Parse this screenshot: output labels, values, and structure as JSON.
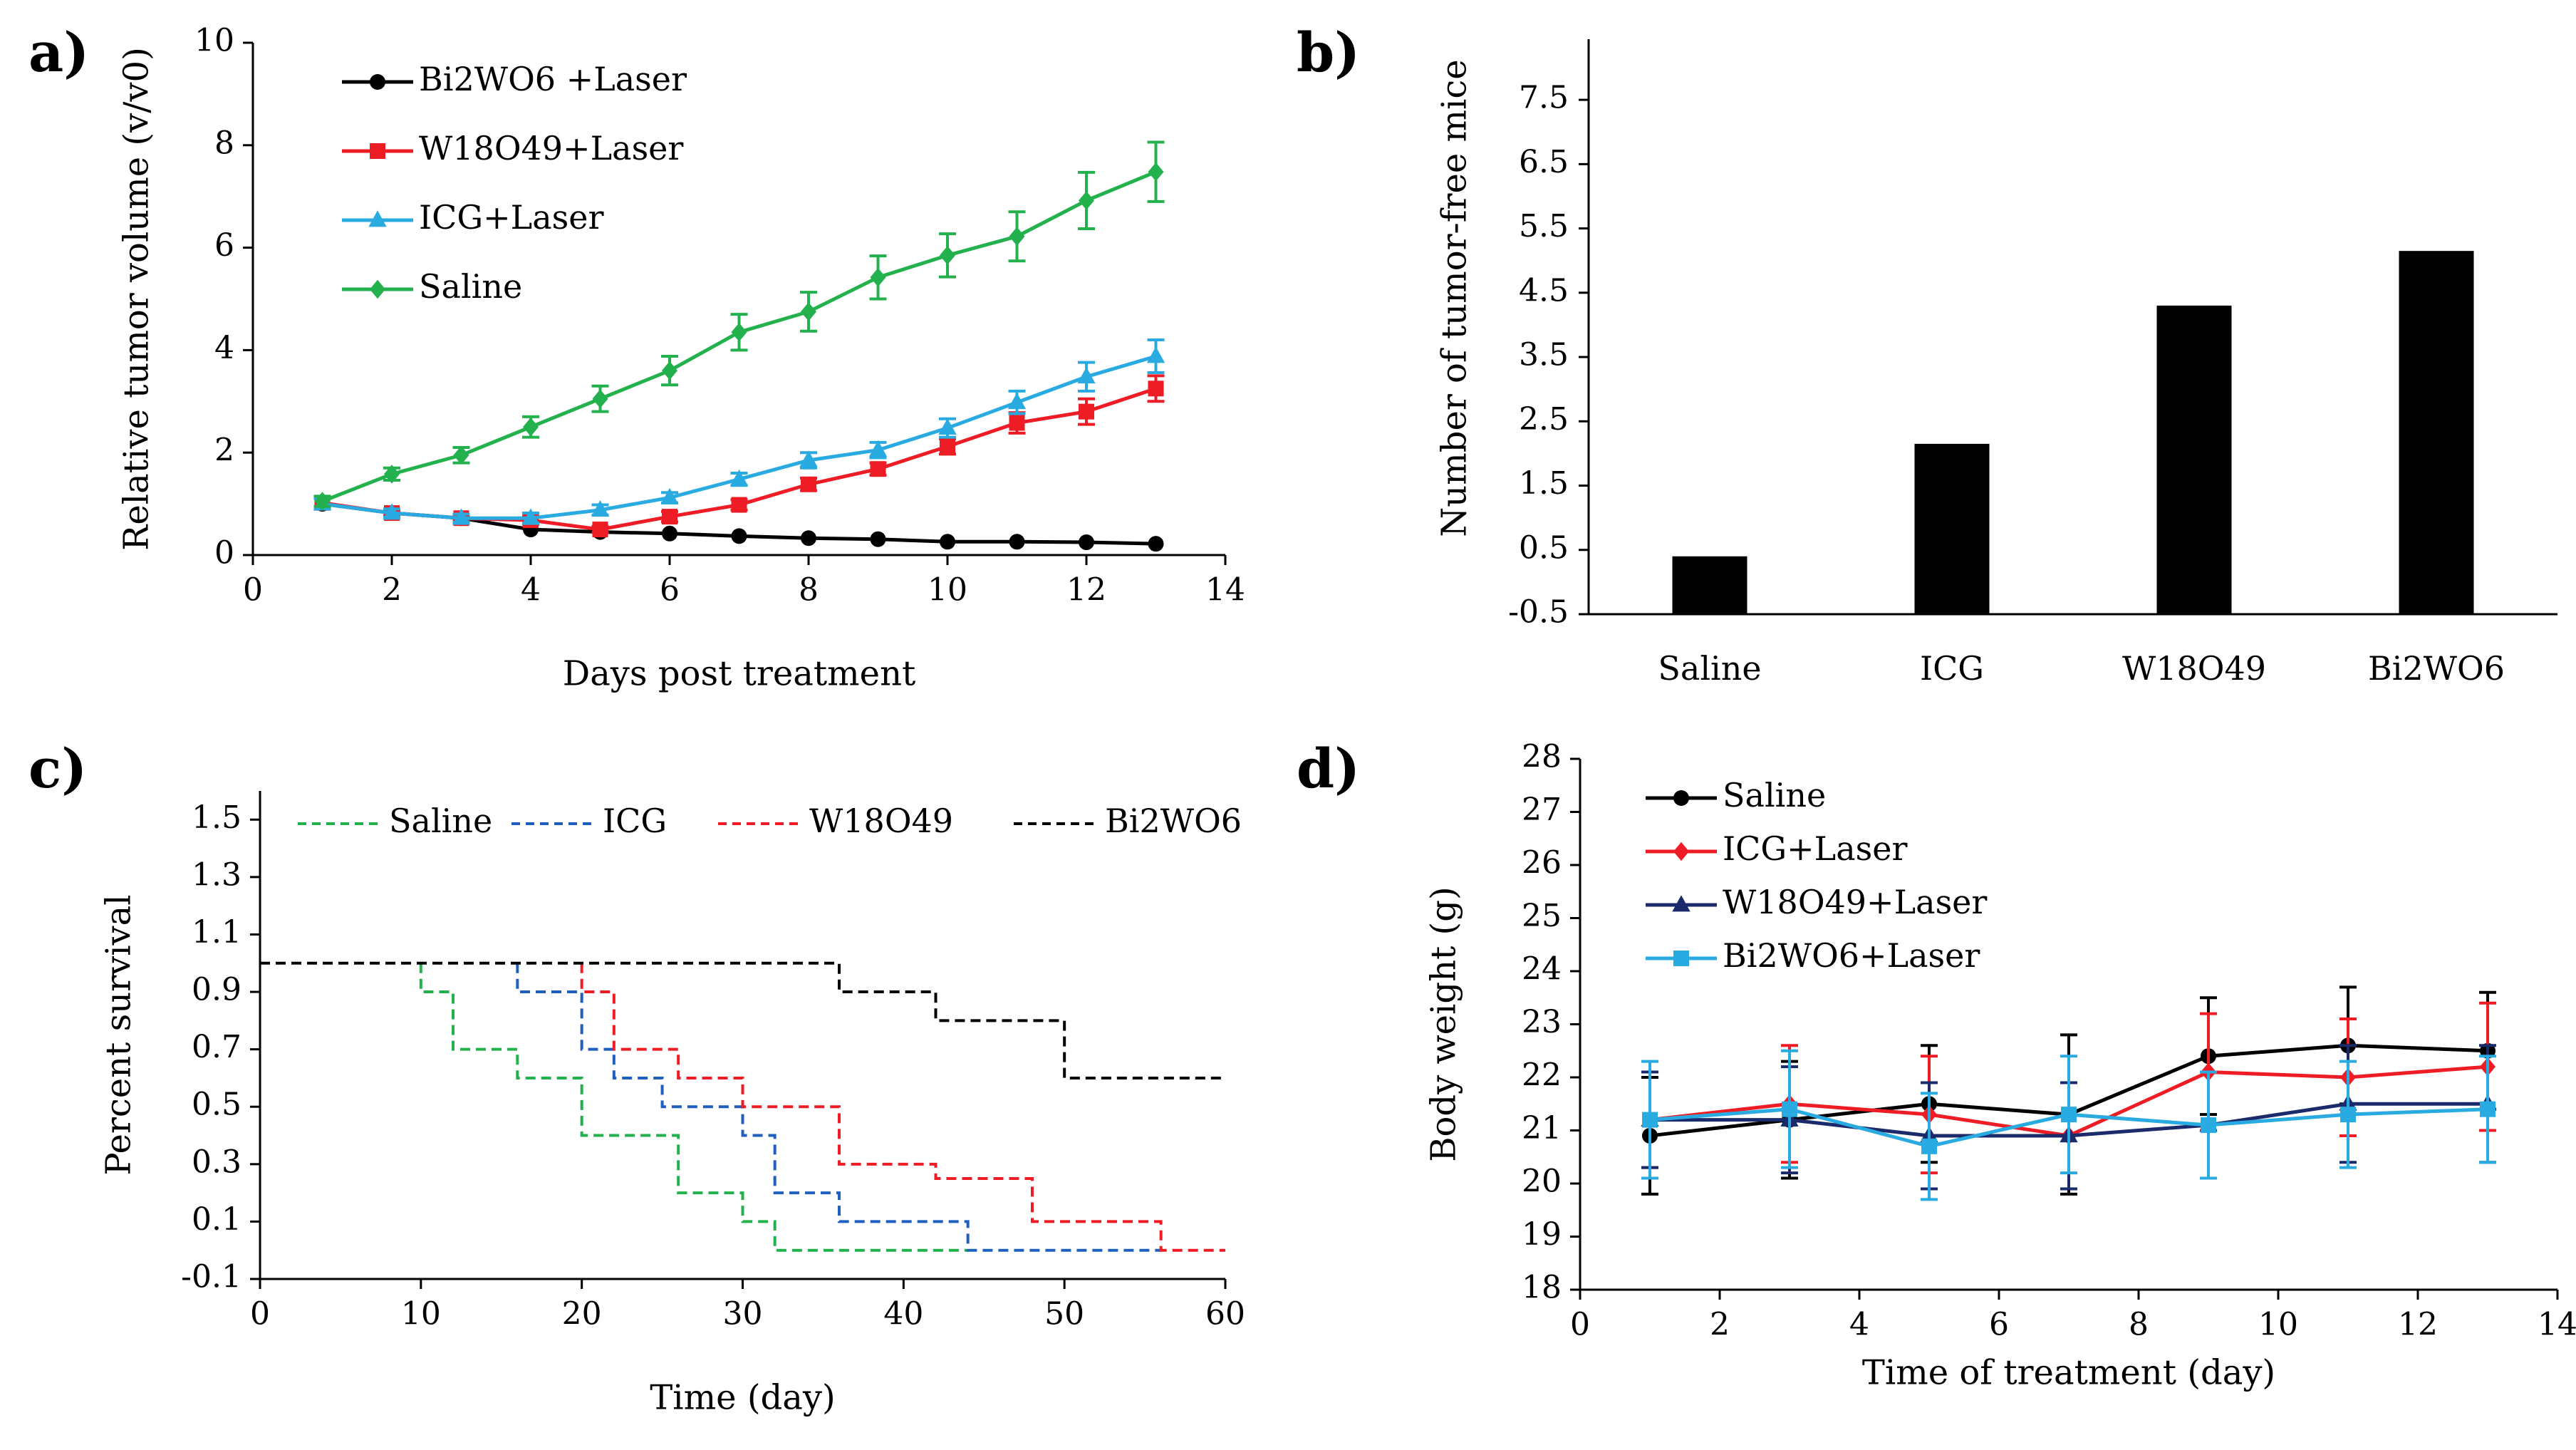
{
  "chart_data": [
    {
      "panel": "a)",
      "type": "line",
      "xlabel": "Days post treatment",
      "ylabel": "Relative tumor volume (v/v0)",
      "xlim": [
        0,
        14
      ],
      "ylim": [
        0,
        10
      ],
      "xticks": [
        "0",
        "2",
        "4",
        "6",
        "8",
        "10",
        "12",
        "14"
      ],
      "yticks": [
        "0",
        "2",
        "4",
        "6",
        "8",
        "10"
      ],
      "legend": "top-left",
      "x": [
        1,
        2,
        3,
        4,
        5,
        6,
        7,
        8,
        9,
        10,
        11,
        12,
        13
      ],
      "series": [
        {
          "name": "Bi2WO6 +Laser",
          "color": "#000000",
          "marker": "circle",
          "values": [
            1.0,
            0.82,
            0.72,
            0.5,
            0.45,
            0.42,
            0.37,
            0.33,
            0.31,
            0.26,
            0.26,
            0.25,
            0.22
          ],
          "errors": [
            0,
            0,
            0,
            0,
            0,
            0,
            0,
            0,
            0,
            0,
            0,
            0,
            0
          ]
        },
        {
          "name": "W18O49+Laser",
          "color": "#ee1c25",
          "marker": "square",
          "values": [
            1.02,
            0.82,
            0.72,
            0.68,
            0.5,
            0.75,
            0.98,
            1.38,
            1.68,
            2.12,
            2.58,
            2.8,
            3.25
          ],
          "errors": [
            0.1,
            0.05,
            0.05,
            0.08,
            0.06,
            0.1,
            0.1,
            0.12,
            0.12,
            0.15,
            0.2,
            0.25,
            0.25
          ]
        },
        {
          "name": "ICG+Laser",
          "color": "#29abe2",
          "marker": "triangle",
          "values": [
            1.0,
            0.82,
            0.72,
            0.72,
            0.88,
            1.12,
            1.48,
            1.85,
            2.05,
            2.48,
            2.98,
            3.48,
            3.88
          ],
          "errors": [
            0.1,
            0.08,
            0.08,
            0.1,
            0.1,
            0.1,
            0.12,
            0.15,
            0.15,
            0.18,
            0.22,
            0.28,
            0.32
          ]
        },
        {
          "name": "Saline",
          "color": "#22b14c",
          "marker": "diamond",
          "values": [
            1.05,
            1.58,
            1.95,
            2.5,
            3.05,
            3.6,
            4.35,
            4.75,
            5.42,
            5.85,
            6.22,
            6.92,
            7.48
          ],
          "errors": [
            0.1,
            0.12,
            0.15,
            0.2,
            0.25,
            0.28,
            0.35,
            0.38,
            0.42,
            0.42,
            0.48,
            0.55,
            0.58
          ]
        }
      ]
    },
    {
      "panel": "b)",
      "type": "bar",
      "xlabel": "",
      "ylabel": "Number of tumor-free mice",
      "ylim": [
        -0.5,
        8
      ],
      "yticks": [
        "-0.5",
        "0.5",
        "1.5",
        "2.5",
        "3.5",
        "4.5",
        "5.5",
        "6.5",
        "7.5"
      ],
      "categories": [
        "Saline",
        "ICG",
        "W18O49",
        "Bi2WO6"
      ],
      "values": [
        0.4,
        2.15,
        4.3,
        5.15
      ],
      "color": "#000000"
    },
    {
      "panel": "c)",
      "type": "line",
      "xlabel": "Time (day)",
      "ylabel": "Percent survival",
      "xlim": [
        0,
        60
      ],
      "ylim": [
        -0.1,
        1.6
      ],
      "xticks": [
        "0",
        "10",
        "20",
        "30",
        "40",
        "50",
        "60"
      ],
      "yticks": [
        "-0.1",
        "0.1",
        "0.3",
        "0.5",
        "0.7",
        "0.9",
        "1.1",
        "1.3",
        "1.5"
      ],
      "legend": "top",
      "series": [
        {
          "name": "Saline",
          "color": "#22b14c",
          "style": "dashed-step",
          "points": [
            [
              10,
              1.0
            ],
            [
              10,
              0.9
            ],
            [
              12,
              0.9
            ],
            [
              12,
              0.7
            ],
            [
              16,
              0.7
            ],
            [
              16,
              0.6
            ],
            [
              20,
              0.6
            ],
            [
              20,
              0.4
            ],
            [
              26,
              0.4
            ],
            [
              26,
              0.2
            ],
            [
              30,
              0.2
            ],
            [
              30,
              0.1
            ],
            [
              32,
              0.1
            ],
            [
              32,
              0.0
            ],
            [
              44,
              0.0
            ]
          ]
        },
        {
          "name": "ICG",
          "color": "#1f5fbf",
          "style": "dashed-step",
          "points": [
            [
              16,
              1.0
            ],
            [
              16,
              0.9
            ],
            [
              20,
              0.9
            ],
            [
              20,
              0.7
            ],
            [
              22,
              0.7
            ],
            [
              22,
              0.6
            ],
            [
              25,
              0.6
            ],
            [
              25,
              0.5
            ],
            [
              30,
              0.5
            ],
            [
              30,
              0.4
            ],
            [
              32,
              0.4
            ],
            [
              32,
              0.2
            ],
            [
              36,
              0.2
            ],
            [
              36,
              0.1
            ],
            [
              44,
              0.1
            ],
            [
              44,
              0.0
            ],
            [
              56,
              0.0
            ]
          ]
        },
        {
          "name": "W18O49",
          "color": "#ee1c25",
          "style": "dashed-step",
          "points": [
            [
              20,
              1.0
            ],
            [
              20,
              0.9
            ],
            [
              22,
              0.9
            ],
            [
              22,
              0.7
            ],
            [
              26,
              0.7
            ],
            [
              26,
              0.6
            ],
            [
              30,
              0.6
            ],
            [
              30,
              0.5
            ],
            [
              36,
              0.5
            ],
            [
              36,
              0.3
            ],
            [
              42,
              0.3
            ],
            [
              42,
              0.25
            ],
            [
              48,
              0.25
            ],
            [
              48,
              0.1
            ],
            [
              56,
              0.1
            ],
            [
              56,
              0.0
            ],
            [
              60,
              0.0
            ]
          ]
        },
        {
          "name": "Bi2WO6",
          "color": "#000000",
          "style": "dashed-step",
          "points": [
            [
              0,
              1.0
            ],
            [
              36,
              1.0
            ],
            [
              36,
              0.9
            ],
            [
              42,
              0.9
            ],
            [
              42,
              0.8
            ],
            [
              50,
              0.8
            ],
            [
              50,
              0.6
            ],
            [
              60,
              0.6
            ]
          ]
        }
      ]
    },
    {
      "panel": "d)",
      "type": "line",
      "xlabel": "Time of treatment (day)",
      "ylabel": "Body weight (g)",
      "xlim": [
        0,
        14
      ],
      "ylim": [
        18,
        28
      ],
      "xticks": [
        "0",
        "2",
        "4",
        "6",
        "8",
        "10",
        "12",
        "14"
      ],
      "yticks": [
        "18",
        "19",
        "20",
        "21",
        "22",
        "23",
        "24",
        "25",
        "26",
        "27",
        "28"
      ],
      "legend": "top-left",
      "x": [
        1,
        3,
        5,
        7,
        9,
        11,
        13
      ],
      "series": [
        {
          "name": "Saline",
          "color": "#000000",
          "marker": "circle",
          "values": [
            20.9,
            21.2,
            21.5,
            21.3,
            22.4,
            22.6,
            22.5
          ],
          "errors": [
            1.1,
            1.1,
            1.1,
            1.5,
            1.1,
            1.1,
            1.1
          ]
        },
        {
          "name": "ICG+Laser",
          "color": "#ee1c25",
          "marker": "diamond",
          "values": [
            21.2,
            21.5,
            21.3,
            20.9,
            22.1,
            22.0,
            22.2
          ],
          "errors": [
            0.9,
            1.1,
            1.1,
            1.0,
            1.1,
            1.1,
            1.2
          ]
        },
        {
          "name": "W18O49+Laser",
          "color": "#1b2a6b",
          "marker": "triangle",
          "values": [
            21.2,
            21.2,
            20.9,
            20.9,
            21.1,
            21.5,
            21.5
          ],
          "errors": [
            0.9,
            1.0,
            1.0,
            1.0,
            1.0,
            1.1,
            1.1
          ]
        },
        {
          "name": "Bi2WO6+Laser",
          "color": "#29abe2",
          "marker": "square",
          "values": [
            21.2,
            21.4,
            20.7,
            21.3,
            21.1,
            21.3,
            21.4
          ],
          "errors": [
            1.1,
            1.1,
            1.0,
            1.1,
            1.0,
            1.0,
            1.0
          ]
        }
      ]
    }
  ]
}
